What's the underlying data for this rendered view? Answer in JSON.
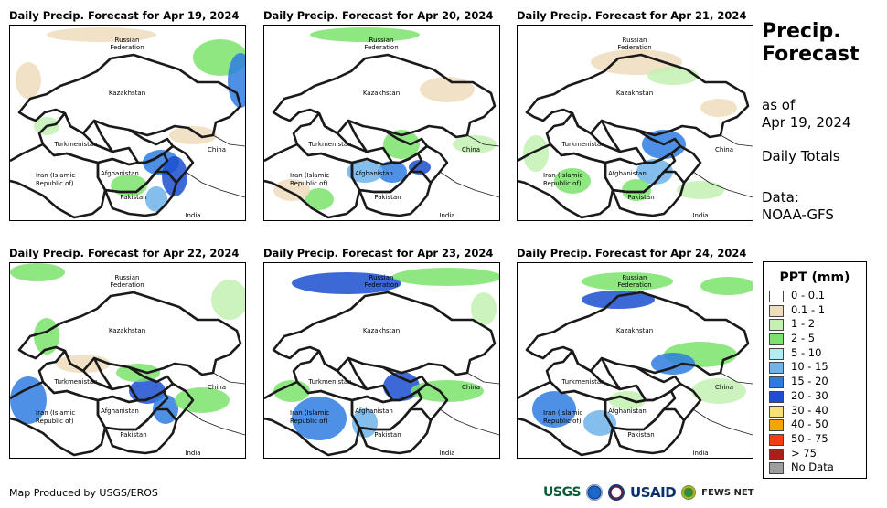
{
  "panels": [
    {
      "title": "Daily Precip. Forecast for Apr 19, 2024"
    },
    {
      "title": "Daily Precip. Forecast for Apr 20, 2024"
    },
    {
      "title": "Daily Precip. Forecast for Apr 21, 2024"
    },
    {
      "title": "Daily Precip. Forecast for Apr 22, 2024"
    },
    {
      "title": "Daily Precip. Forecast for Apr 23, 2024"
    },
    {
      "title": "Daily Precip. Forecast for Apr 24, 2024"
    }
  ],
  "map_labels": {
    "russia": "Russian",
    "russia2": "Federation",
    "kazakhstan": "Kazakhstan",
    "turkmenistan": "Turkmenistan",
    "china": "China",
    "iran": "Iran  (Islamic",
    "iran2": "Republic of)",
    "afghanistan": "Afghanistan",
    "pakistan": "Pakistan",
    "india": "India"
  },
  "side": {
    "title1": "Precip.",
    "title2": "Forecast",
    "asof1": "as of",
    "asof2": "Apr 19, 2024",
    "totals": "Daily Totals",
    "data1": "Data:",
    "data2": "NOAA-GFS"
  },
  "legend": {
    "title": "PPT (mm)",
    "items": [
      {
        "label": "0 - 0.1",
        "color": "#ffffff"
      },
      {
        "label": "0.1 - 1",
        "color": "#efdcbc"
      },
      {
        "label": "1 - 2",
        "color": "#c3f1b1"
      },
      {
        "label": "2 - 5",
        "color": "#7be36c"
      },
      {
        "label": "5 - 10",
        "color": "#b3ecf5"
      },
      {
        "label": "10 - 15",
        "color": "#6fb3ea"
      },
      {
        "label": "15 - 20",
        "color": "#2f7ce0"
      },
      {
        "label": "20 - 30",
        "color": "#1b4fd0"
      },
      {
        "label": "30 - 40",
        "color": "#f7e07a"
      },
      {
        "label": "40 - 50",
        "color": "#f5a400"
      },
      {
        "label": "50 - 75",
        "color": "#f23d0c"
      },
      {
        "label": "> 75",
        "color": "#a8201a"
      },
      {
        "label": "No Data",
        "color": "#9e9e9e"
      }
    ]
  },
  "credit": "Map Produced by USGS/EROS",
  "logos": {
    "usgs": "USGS",
    "usaid": "USAID",
    "fews": "FEWS NET"
  }
}
